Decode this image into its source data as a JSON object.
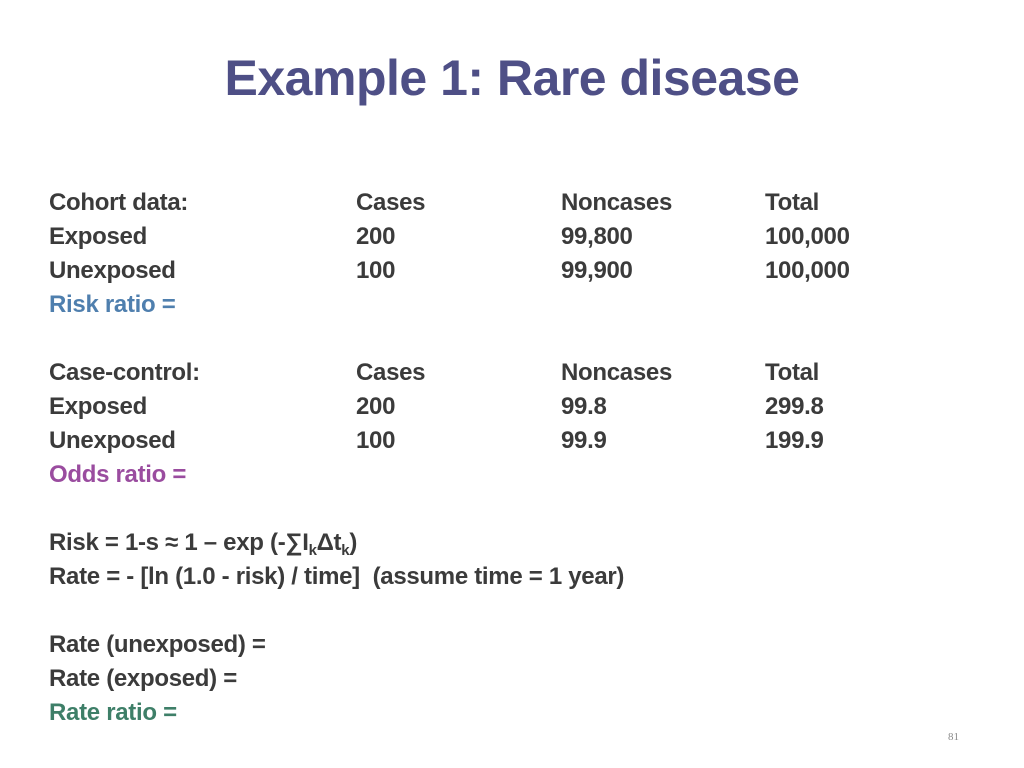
{
  "slide": {
    "title": "Example 1: Rare disease",
    "page_number": "81"
  },
  "cohort": {
    "headers": [
      "Cohort data:",
      "Cases",
      "Noncases",
      "Total"
    ],
    "rows": [
      [
        "Exposed",
        "200",
        "99,800",
        "100,000"
      ],
      [
        "Unexposed",
        "100",
        "99,900",
        "100,000"
      ]
    ],
    "result_label": "Risk ratio ="
  },
  "case_control": {
    "headers": [
      "Case-control:",
      "Cases",
      "Noncases",
      "Total"
    ],
    "rows": [
      [
        "Exposed",
        "200",
        "99.8",
        "299.8"
      ],
      [
        "Unexposed",
        "100",
        "99.9",
        "199.9"
      ]
    ],
    "result_label": "Odds ratio ="
  },
  "formulas": {
    "risk_prefix": "Risk = 1-s ≈ 1 – exp (-∑I",
    "risk_sub1": "k",
    "risk_mid": "Δt",
    "risk_sub2": "k",
    "risk_suffix": ")",
    "rate": "Rate = - [ln (1.0 - risk) / time]  (assume time = 1 year)"
  },
  "rates": {
    "unexposed": "Rate (unexposed) =",
    "exposed": "Rate (exposed) =",
    "ratio": "Rate ratio ="
  },
  "colors": {
    "title": "#4e4f86",
    "body": "#3b3b3b",
    "risk_ratio": "#4f7fae",
    "odds_ratio": "#9a4c9f",
    "rate_ratio": "#3e7f68"
  }
}
